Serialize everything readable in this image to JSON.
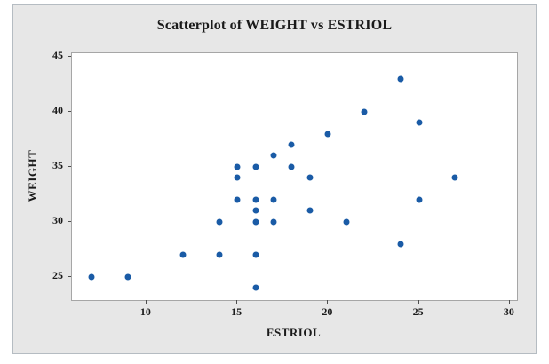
{
  "figure": {
    "title": "Scatterplot of WEIGHT vs ESTRIOL",
    "x_axis_label": "ESTRIOL",
    "y_axis_label": "WEIGHT"
  },
  "colors": {
    "panel_bg": "#e7e7e7",
    "panel_border": "#b5bcc2",
    "plot_bg": "#ffffff",
    "plot_border": "#a6a6a6",
    "point": "#1a5ba6",
    "tick": "#4d4d4d",
    "text": "#1a1a1a"
  },
  "chart_data": {
    "type": "scatter",
    "title": "Scatterplot of WEIGHT vs ESTRIOL",
    "xlabel": "ESTRIOL",
    "ylabel": "WEIGHT",
    "x_ticks": [
      10,
      15,
      20,
      25,
      30
    ],
    "y_ticks": [
      25,
      30,
      35,
      40,
      45
    ],
    "xlim": [
      5.9,
      30.4
    ],
    "ylim": [
      22.9,
      45.3
    ],
    "grid": false,
    "legend": false,
    "marker": "filled-circle",
    "points": [
      [
        7,
        25
      ],
      [
        9,
        25
      ],
      [
        12,
        27
      ],
      [
        14,
        27
      ],
      [
        14,
        30
      ],
      [
        15,
        32
      ],
      [
        15,
        34
      ],
      [
        15,
        35
      ],
      [
        16,
        24
      ],
      [
        16,
        27
      ],
      [
        16,
        30
      ],
      [
        16,
        31
      ],
      [
        16,
        32
      ],
      [
        16,
        35
      ],
      [
        17,
        30
      ],
      [
        17,
        32
      ],
      [
        17,
        36
      ],
      [
        18,
        35
      ],
      [
        18,
        37
      ],
      [
        19,
        31
      ],
      [
        19,
        34
      ],
      [
        20,
        38
      ],
      [
        21,
        30
      ],
      [
        22,
        40
      ],
      [
        24,
        28
      ],
      [
        24,
        43
      ],
      [
        25,
        32
      ],
      [
        25,
        39
      ],
      [
        27,
        34
      ]
    ]
  }
}
